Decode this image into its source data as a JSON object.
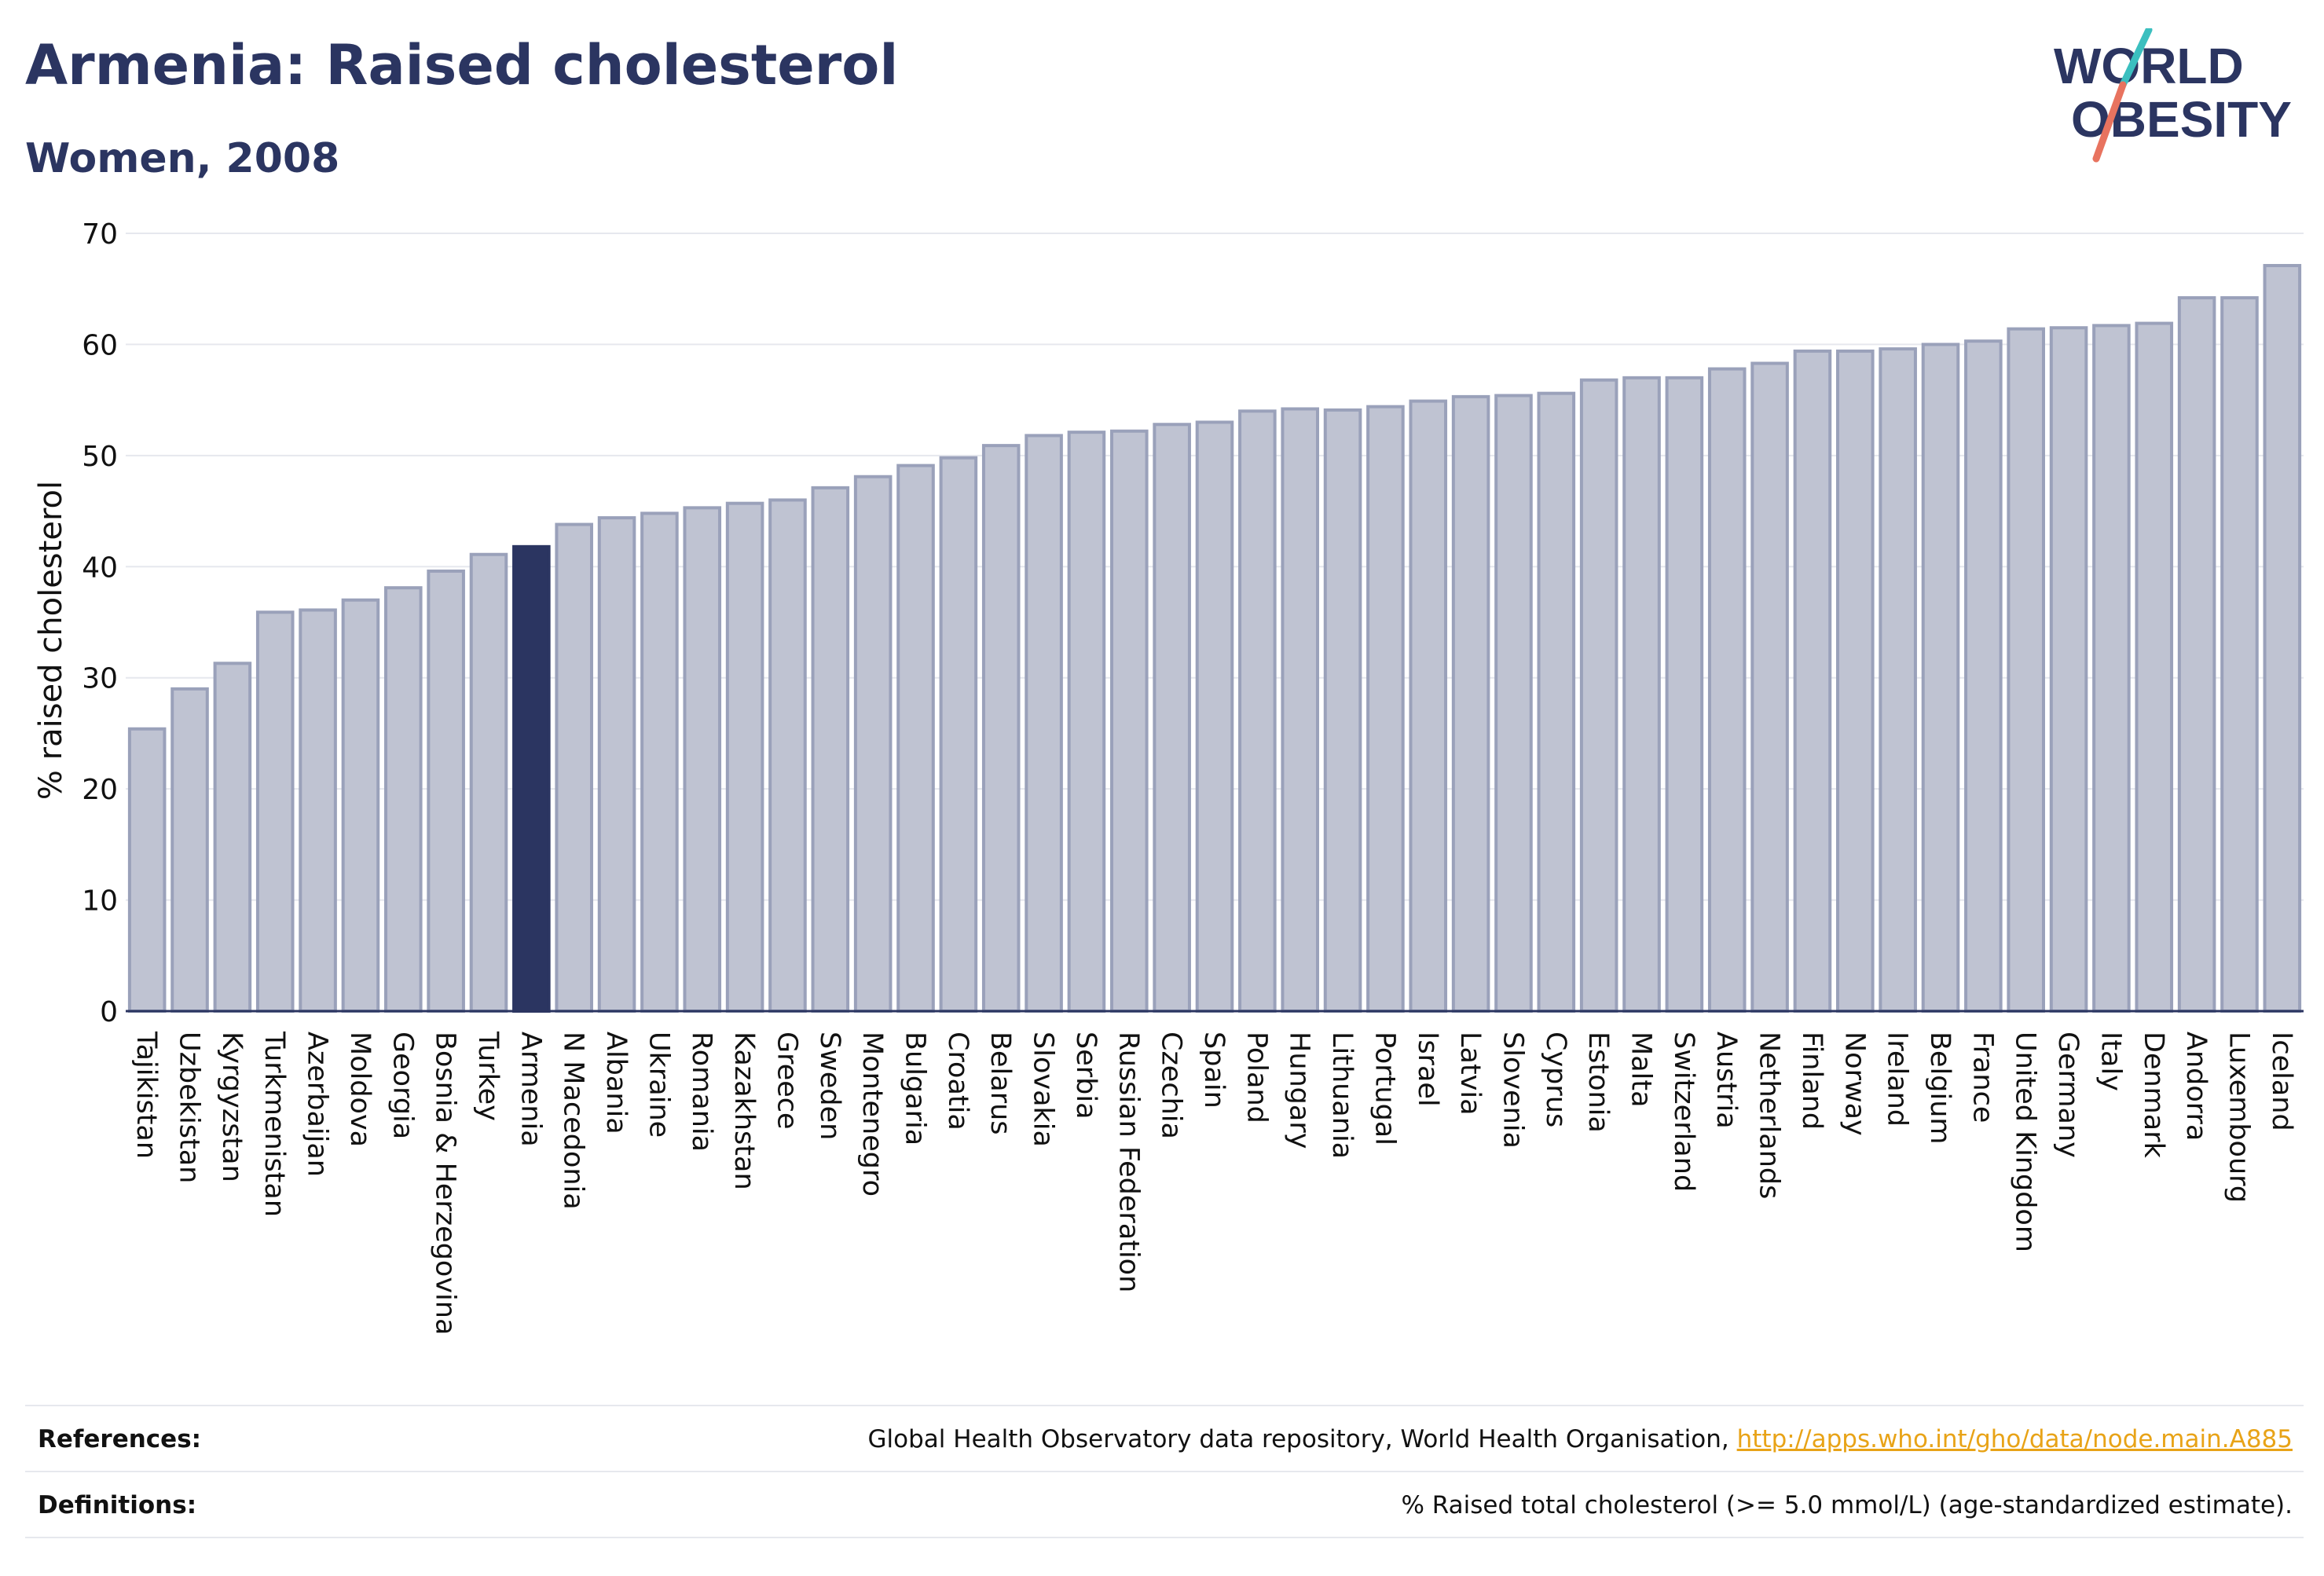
{
  "header": {
    "title": "Armenia: Raised cholesterol",
    "subtitle": "Women, 2008",
    "logo_text_line1": "WORLD",
    "logo_text_line2": "OBESITY"
  },
  "colors": {
    "bar": "#bfc3d2",
    "bar_stroke": "#9aa1ba",
    "highlight": "#2b3561",
    "text": "#2b3561",
    "grid": "#e6e8ee",
    "link": "#e8a317",
    "logo_teal": "#3bbfbf",
    "logo_coral": "#e8735f"
  },
  "chart_data": {
    "type": "bar",
    "title": "Armenia: Raised cholesterol",
    "subtitle": "Women, 2008",
    "xlabel": "",
    "ylabel": "% raised cholesterol",
    "ylim": [
      0,
      70
    ],
    "yticks": [
      0,
      10,
      20,
      30,
      40,
      50,
      60,
      70
    ],
    "grid": true,
    "highlight": "Armenia",
    "categories": [
      "Tajikistan",
      "Uzbekistan",
      "Kyrgyzstan",
      "Turkmenistan",
      "Azerbaijan",
      "Moldova",
      "Georgia",
      "Bosnia & Herzegovina",
      "Turkey",
      "Armenia",
      "N Macedonia",
      "Albania",
      "Ukraine",
      "Romania",
      "Kazakhstan",
      "Greece",
      "Sweden",
      "Montenegro",
      "Bulgaria",
      "Croatia",
      "Belarus",
      "Slovakia",
      "Serbia",
      "Russian Federation",
      "Czechia",
      "Spain",
      "Poland",
      "Hungary",
      "Lithuania",
      "Portugal",
      "Israel",
      "Latvia",
      "Slovenia",
      "Cyprus",
      "Estonia",
      "Malta",
      "Switzerland",
      "Austria",
      "Netherlands",
      "Finland",
      "Norway",
      "Ireland",
      "Belgium",
      "France",
      "United Kingdom",
      "Germany",
      "Italy",
      "Denmark",
      "Andorra",
      "Luxembourg",
      "Iceland"
    ],
    "values": [
      25.4,
      29.0,
      31.3,
      35.9,
      36.1,
      37.0,
      38.1,
      39.6,
      41.1,
      41.8,
      43.8,
      44.4,
      44.8,
      45.3,
      45.7,
      46.0,
      47.1,
      48.1,
      49.1,
      49.8,
      50.9,
      51.8,
      52.1,
      52.2,
      52.8,
      53.0,
      54.0,
      54.2,
      54.1,
      54.4,
      54.9,
      55.3,
      55.4,
      55.6,
      56.8,
      57.0,
      57.0,
      57.8,
      58.3,
      59.4,
      59.4,
      59.6,
      60.0,
      60.3,
      61.4,
      61.5,
      61.7,
      61.9,
      64.2,
      64.2,
      67.1
    ]
  },
  "footer": {
    "references_label": "References:",
    "references_text": "Global Health Observatory data repository, World Health Organisation,",
    "references_link": "http://apps.who.int/gho/data/node.main.A885",
    "definitions_label": "Definitions:",
    "definitions_text": "% Raised total cholesterol (>= 5.0 mmol/L) (age-standardized estimate)."
  }
}
